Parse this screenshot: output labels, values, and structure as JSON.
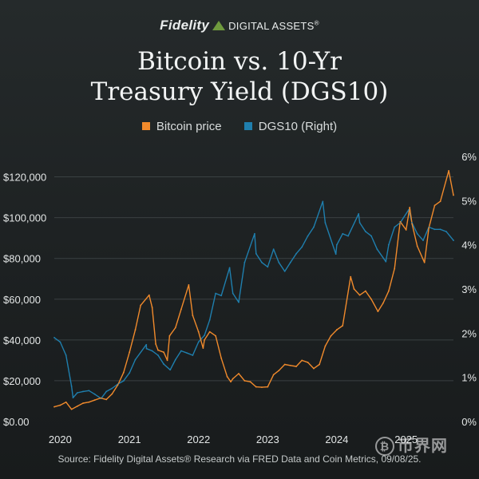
{
  "brand": {
    "name": "Fidelity",
    "sub": "DIGITAL ASSETS",
    "mark": "®"
  },
  "watermark": {
    "coin": "₿",
    "text": "币界网"
  },
  "source": "Source: Fidelity Digital Assets® Research via FRED Data and Coin Metrics, 09/08/25.",
  "colors": {
    "btc": "#f08a2c",
    "dgs10": "#1f7fae",
    "grid": "#3a4142",
    "text": "#e3e6e6"
  },
  "chart_data": {
    "type": "line",
    "title": "Bitcoin vs. 10-Yr Treasury Yield (DGS10)",
    "title_lines": [
      "Bitcoin vs. 10-Yr",
      "Treasury Yield (DGS10)"
    ],
    "xlabel": "",
    "ylabel": "",
    "ylabel_right": "",
    "x_ticks": [
      "2020",
      "2021",
      "2022",
      "2023",
      "2024",
      "2025"
    ],
    "xlim": [
      "2019-12-01",
      "2025-09-08"
    ],
    "ylim_left": [
      0,
      130000
    ],
    "y_ticks_left": [
      "$0.00",
      "$20,000",
      "$40,000",
      "$60,000",
      "$80,000",
      "$100,000",
      "$120,000"
    ],
    "y_ticks_left_values": [
      0,
      20000,
      40000,
      60000,
      80000,
      100000,
      120000
    ],
    "ylim_right": [
      0,
      6
    ],
    "y_ticks_right": [
      "0%",
      "1%",
      "2%",
      "3%",
      "4%",
      "5%",
      "6%"
    ],
    "y_ticks_right_values": [
      0,
      1,
      2,
      3,
      4,
      5,
      6
    ],
    "grid": true,
    "legend_position": "top-center",
    "series": [
      {
        "name": "Bitcoin price",
        "axis": "left",
        "x": [
          "2019-12-01",
          "2020-01-01",
          "2020-02-01",
          "2020-03-01",
          "2020-04-01",
          "2020-05-01",
          "2020-06-01",
          "2020-07-01",
          "2020-08-01",
          "2020-09-01",
          "2020-10-01",
          "2020-11-01",
          "2020-12-01",
          "2021-01-01",
          "2021-02-01",
          "2021-03-01",
          "2021-04-15",
          "2021-05-01",
          "2021-05-20",
          "2021-06-01",
          "2021-07-01",
          "2021-07-20",
          "2021-08-01",
          "2021-09-01",
          "2021-10-01",
          "2021-11-10",
          "2021-12-01",
          "2022-01-01",
          "2022-01-25",
          "2022-02-01",
          "2022-03-01",
          "2022-04-01",
          "2022-05-01",
          "2022-06-01",
          "2022-06-20",
          "2022-07-01",
          "2022-08-01",
          "2022-09-01",
          "2022-10-01",
          "2022-11-01",
          "2022-12-01",
          "2023-01-01",
          "2023-02-01",
          "2023-03-01",
          "2023-04-01",
          "2023-05-01",
          "2023-06-01",
          "2023-07-01",
          "2023-08-01",
          "2023-09-01",
          "2023-10-01",
          "2023-11-01",
          "2023-12-01",
          "2024-01-01",
          "2024-02-01",
          "2024-03-14",
          "2024-04-01",
          "2024-05-01",
          "2024-06-01",
          "2024-07-01",
          "2024-08-05",
          "2024-09-01",
          "2024-10-01",
          "2024-11-01",
          "2024-12-01",
          "2025-01-01",
          "2025-01-20",
          "2025-02-01",
          "2025-03-01",
          "2025-04-08",
          "2025-05-01",
          "2025-06-01",
          "2025-07-01",
          "2025-08-14",
          "2025-09-08"
        ],
        "values": [
          7200,
          8000,
          9500,
          6000,
          7500,
          9000,
          9500,
          10500,
          11500,
          10800,
          13500,
          18000,
          24000,
          34000,
          45000,
          57000,
          62000,
          56000,
          38000,
          35000,
          34000,
          30000,
          42000,
          46000,
          55000,
          67000,
          52000,
          44000,
          36000,
          40000,
          44000,
          42000,
          31000,
          22000,
          19500,
          21000,
          23500,
          20000,
          19500,
          17000,
          16800,
          17000,
          23000,
          25000,
          28000,
          27500,
          27000,
          30000,
          29000,
          26000,
          28000,
          37000,
          42000,
          45000,
          47000,
          71000,
          65000,
          62000,
          64000,
          60000,
          54000,
          58000,
          64000,
          75000,
          98000,
          94000,
          105000,
          97000,
          86000,
          78000,
          95000,
          106000,
          108000,
          123000,
          111000
        ]
      },
      {
        "name": "DGS10 (Right)",
        "axis": "right",
        "x": [
          "2019-12-01",
          "2020-01-01",
          "2020-02-01",
          "2020-03-01",
          "2020-03-09",
          "2020-04-01",
          "2020-05-01",
          "2020-06-01",
          "2020-07-01",
          "2020-08-04",
          "2020-09-01",
          "2020-10-01",
          "2020-11-01",
          "2020-12-01",
          "2021-01-01",
          "2021-02-01",
          "2021-03-31",
          "2021-04-01",
          "2021-05-01",
          "2021-06-01",
          "2021-07-01",
          "2021-08-04",
          "2021-09-01",
          "2021-10-01",
          "2021-11-01",
          "2021-12-01",
          "2022-01-01",
          "2022-02-01",
          "2022-03-01",
          "2022-04-01",
          "2022-05-01",
          "2022-06-14",
          "2022-07-01",
          "2022-08-01",
          "2022-09-01",
          "2022-10-24",
          "2022-11-01",
          "2022-12-01",
          "2023-01-01",
          "2023-02-01",
          "2023-03-01",
          "2023-04-01",
          "2023-05-01",
          "2023-06-01",
          "2023-07-01",
          "2023-08-01",
          "2023-09-01",
          "2023-10-19",
          "2023-11-01",
          "2023-12-27",
          "2024-01-01",
          "2024-02-01",
          "2024-03-01",
          "2024-04-25",
          "2024-05-01",
          "2024-06-01",
          "2024-07-01",
          "2024-08-01",
          "2024-09-16",
          "2024-10-01",
          "2024-11-01",
          "2024-12-01",
          "2025-01-14",
          "2025-02-01",
          "2025-03-01",
          "2025-04-01",
          "2025-05-01",
          "2025-06-01",
          "2025-07-01",
          "2025-08-01",
          "2025-09-08"
        ],
        "values": [
          1.9,
          1.8,
          1.5,
          0.8,
          0.54,
          0.65,
          0.68,
          0.7,
          0.62,
          0.52,
          0.68,
          0.75,
          0.85,
          0.92,
          1.1,
          1.4,
          1.74,
          1.65,
          1.6,
          1.5,
          1.3,
          1.17,
          1.4,
          1.6,
          1.55,
          1.5,
          1.8,
          1.95,
          2.3,
          2.9,
          2.85,
          3.48,
          2.9,
          2.7,
          3.6,
          4.25,
          3.8,
          3.6,
          3.5,
          3.9,
          3.6,
          3.4,
          3.6,
          3.8,
          3.95,
          4.2,
          4.4,
          4.98,
          4.5,
          3.79,
          4.0,
          4.25,
          4.2,
          4.7,
          4.5,
          4.3,
          4.2,
          3.9,
          3.62,
          4.0,
          4.4,
          4.5,
          4.79,
          4.5,
          4.25,
          4.1,
          4.4,
          4.35,
          4.35,
          4.3,
          4.1
        ]
      }
    ]
  }
}
